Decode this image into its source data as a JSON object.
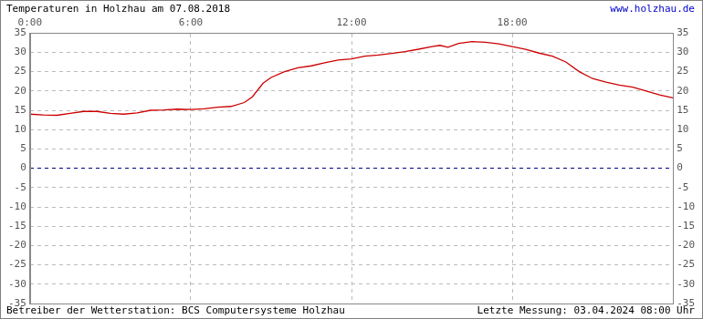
{
  "chart_data": {
    "type": "line",
    "title": "Temperaturen in Holzhau am 07.08.2018",
    "annotations": [
      "www.holzhau.de",
      "Betreiber der Wetterstation: BCS Computersysteme Holzhau",
      "Letzte Messung: 03.04.2024 08:00 Uhr"
    ],
    "x": [
      0,
      0.5,
      1,
      1.5,
      2,
      2.5,
      3,
      3.5,
      4,
      4.5,
      5,
      5.5,
      6,
      6.5,
      7,
      7.5,
      8,
      8.3,
      8.7,
      9,
      9.5,
      10,
      10.5,
      11,
      11.5,
      12,
      12.5,
      13,
      13.5,
      14,
      14.5,
      15,
      15.3,
      15.6,
      16,
      16.5,
      17,
      17.5,
      18,
      18.5,
      19,
      19.5,
      20,
      20.5,
      21,
      21.5,
      22,
      22.5,
      23,
      23.5,
      24
    ],
    "values": [
      14.0,
      13.8,
      13.7,
      14.2,
      14.7,
      14.7,
      14.2,
      14.0,
      14.3,
      15.0,
      15.1,
      15.3,
      15.2,
      15.4,
      15.8,
      16.0,
      17.0,
      18.5,
      22.0,
      23.5,
      25.0,
      26.0,
      26.5,
      27.3,
      28.0,
      28.3,
      29.0,
      29.3,
      29.7,
      30.2,
      30.8,
      31.5,
      31.8,
      31.3,
      32.3,
      32.8,
      32.6,
      32.2,
      31.5,
      30.8,
      29.8,
      29.0,
      27.5,
      25.0,
      23.2,
      22.3,
      21.5,
      21.0,
      20.0,
      19.0,
      18.2
    ],
    "color": "#cc0000",
    "marker": "none",
    "xlim": [
      0,
      24
    ],
    "xticks": [
      {
        "value": 0,
        "label": "0:00"
      },
      {
        "value": 6,
        "label": "6:00"
      },
      {
        "value": 12,
        "label": "12:00"
      },
      {
        "value": 18,
        "label": "18:00"
      }
    ],
    "ylim": [
      -35,
      35
    ],
    "yticks": [
      -35,
      -30,
      -25,
      -20,
      -15,
      -10,
      -5,
      0,
      5,
      10,
      15,
      20,
      25,
      30,
      35
    ],
    "y2lim": [
      -35,
      35
    ],
    "y2ticks": [
      -35,
      -30,
      -25,
      -20,
      -15,
      -10,
      -5,
      0,
      5,
      10,
      15,
      20,
      25,
      30,
      35
    ],
    "grid": true
  }
}
